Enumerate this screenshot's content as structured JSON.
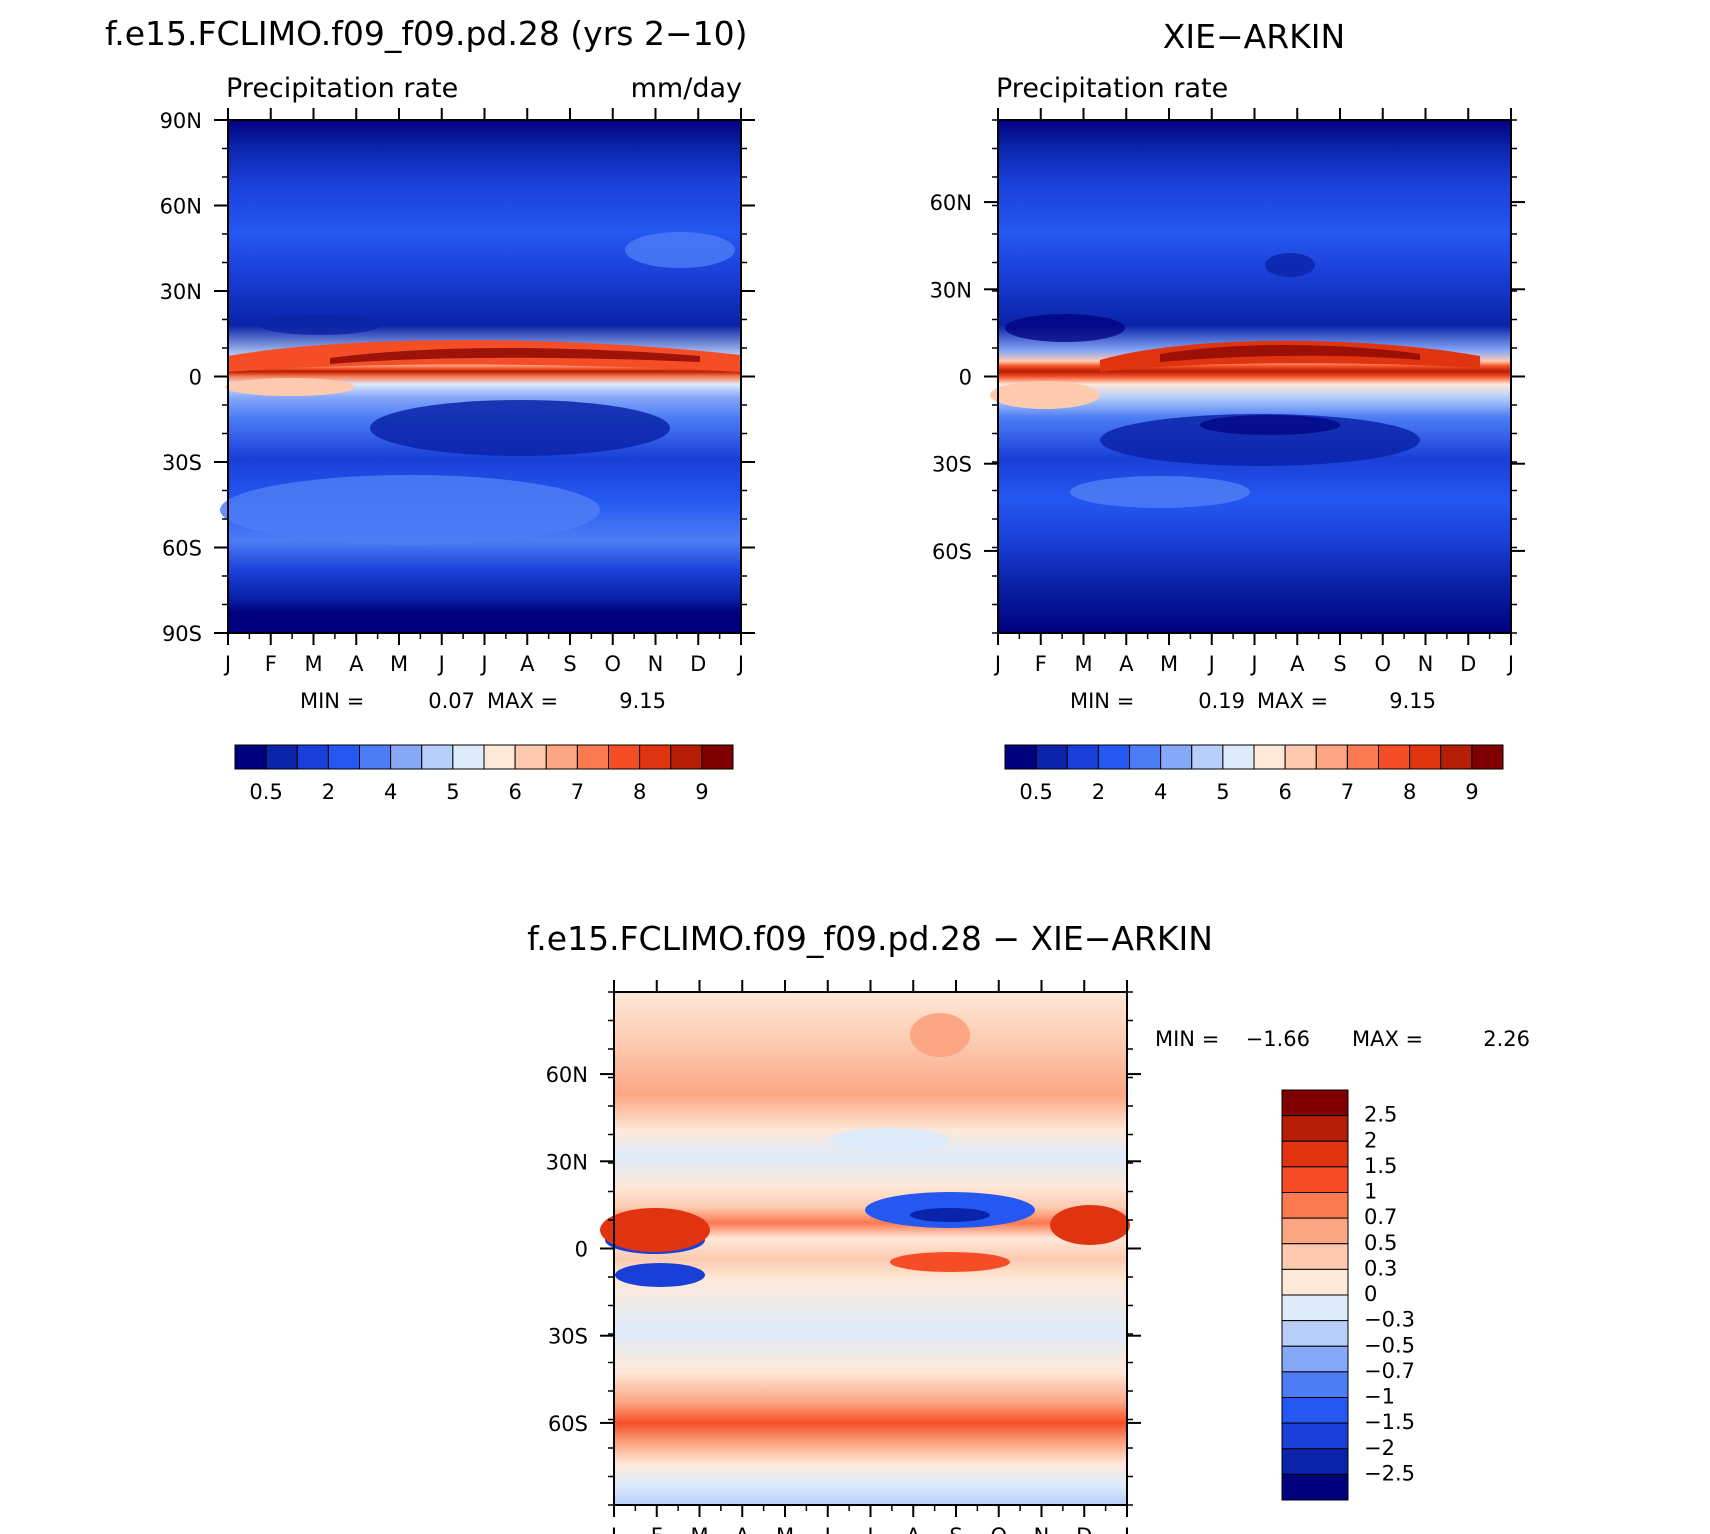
{
  "panels": [
    {
      "id": "model",
      "title": "f.e15.FCLIMO.f09_f09.pd.28 (yrs 2−10)",
      "left_label": "Precipitation rate",
      "right_label": "mm/day",
      "min_text": "MIN =",
      "min_value": "0.07",
      "max_text": "MAX =",
      "max_value": "9.15"
    },
    {
      "id": "obs",
      "title": "XIE−ARKIN",
      "left_label": "Precipitation rate",
      "right_label": "",
      "min_text": "MIN =",
      "min_value": "0.19",
      "max_text": "MAX =",
      "max_value": "9.15"
    },
    {
      "id": "diff",
      "title": "f.e15.FCLIMO.f09_f09.pd.28 − XIE−ARKIN",
      "min_text": "MIN =",
      "min_value": "−1.66",
      "max_text": "MAX =",
      "max_value": "2.26"
    }
  ],
  "month_labels": [
    "J",
    "F",
    "M",
    "A",
    "M",
    "J",
    "J",
    "A",
    "S",
    "O",
    "N",
    "D",
    "J"
  ],
  "lat_labels_full": [
    "90N",
    "60N",
    "30N",
    "0",
    "30S",
    "60S",
    "90S"
  ],
  "lat_labels_short": [
    "60N",
    "30N",
    "0",
    "30S",
    "60S"
  ],
  "colorbar_precip": {
    "colors": [
      "#00007f",
      "#0a23a8",
      "#1a3fd8",
      "#2458f0",
      "#4d7df5",
      "#86a8f7",
      "#b8cff9",
      "#deebfb",
      "#fee8d8",
      "#fdcab0",
      "#fca684",
      "#fb7a50",
      "#f54e26",
      "#e0330f",
      "#b51d05",
      "#7f0000"
    ],
    "labels": [
      "0.5",
      "2",
      "4",
      "5",
      "6",
      "7",
      "8",
      "9"
    ]
  },
  "colorbar_diff": {
    "colors": [
      "#7f0000",
      "#b51d05",
      "#e0330f",
      "#f54e26",
      "#fb7a50",
      "#fca684",
      "#fdcab0",
      "#fee8d8",
      "#deebfb",
      "#b8cff9",
      "#86a8f7",
      "#4d7df5",
      "#2458f0",
      "#1a3fd8",
      "#0a23a8",
      "#00007f"
    ],
    "labels": [
      "2.5",
      "2",
      "1.5",
      "1",
      "0.7",
      "0.5",
      "0.3",
      "0",
      "−0.3",
      "−0.5",
      "−0.7",
      "−1",
      "−1.5",
      "−2",
      "−2.5"
    ]
  },
  "chart_data": [
    {
      "type": "heatmap",
      "title": "f.e15.FCLIMO.f09_f09.pd.28 (yrs 2−10)",
      "x": [
        "J",
        "F",
        "M",
        "A",
        "M",
        "J",
        "J",
        "A",
        "S",
        "O",
        "N",
        "D",
        "J"
      ],
      "y": [
        "90N",
        "60N",
        "30N",
        "0",
        "30S",
        "60S",
        "90S"
      ],
      "units": "mm/day",
      "min": 0.07,
      "max": 9.15,
      "levels": [
        0.5,
        2,
        4,
        5,
        6,
        7,
        8,
        9
      ]
    },
    {
      "type": "heatmap",
      "title": "XIE−ARKIN",
      "x": [
        "J",
        "F",
        "M",
        "A",
        "M",
        "J",
        "J",
        "A",
        "S",
        "O",
        "N",
        "D",
        "J"
      ],
      "y": [
        "60N",
        "30N",
        "0",
        "30S",
        "60S"
      ],
      "min": 0.19,
      "max": 9.15,
      "levels": [
        0.5,
        2,
        4,
        5,
        6,
        7,
        8,
        9
      ]
    },
    {
      "type": "heatmap",
      "title": "f.e15.FCLIMO.f09_f09.pd.28 − XIE−ARKIN",
      "x": [
        "J",
        "F",
        "M",
        "A",
        "M",
        "J",
        "J",
        "A",
        "S",
        "O",
        "N",
        "D",
        "J"
      ],
      "y": [
        "60N",
        "30N",
        "0",
        "30S",
        "60S"
      ],
      "min": -1.66,
      "max": 2.26,
      "levels": [
        -2.5,
        -2,
        -1.5,
        -1,
        -0.7,
        -0.5,
        -0.3,
        0,
        0.3,
        0.5,
        0.7,
        1,
        1.5,
        2,
        2.5
      ]
    }
  ]
}
